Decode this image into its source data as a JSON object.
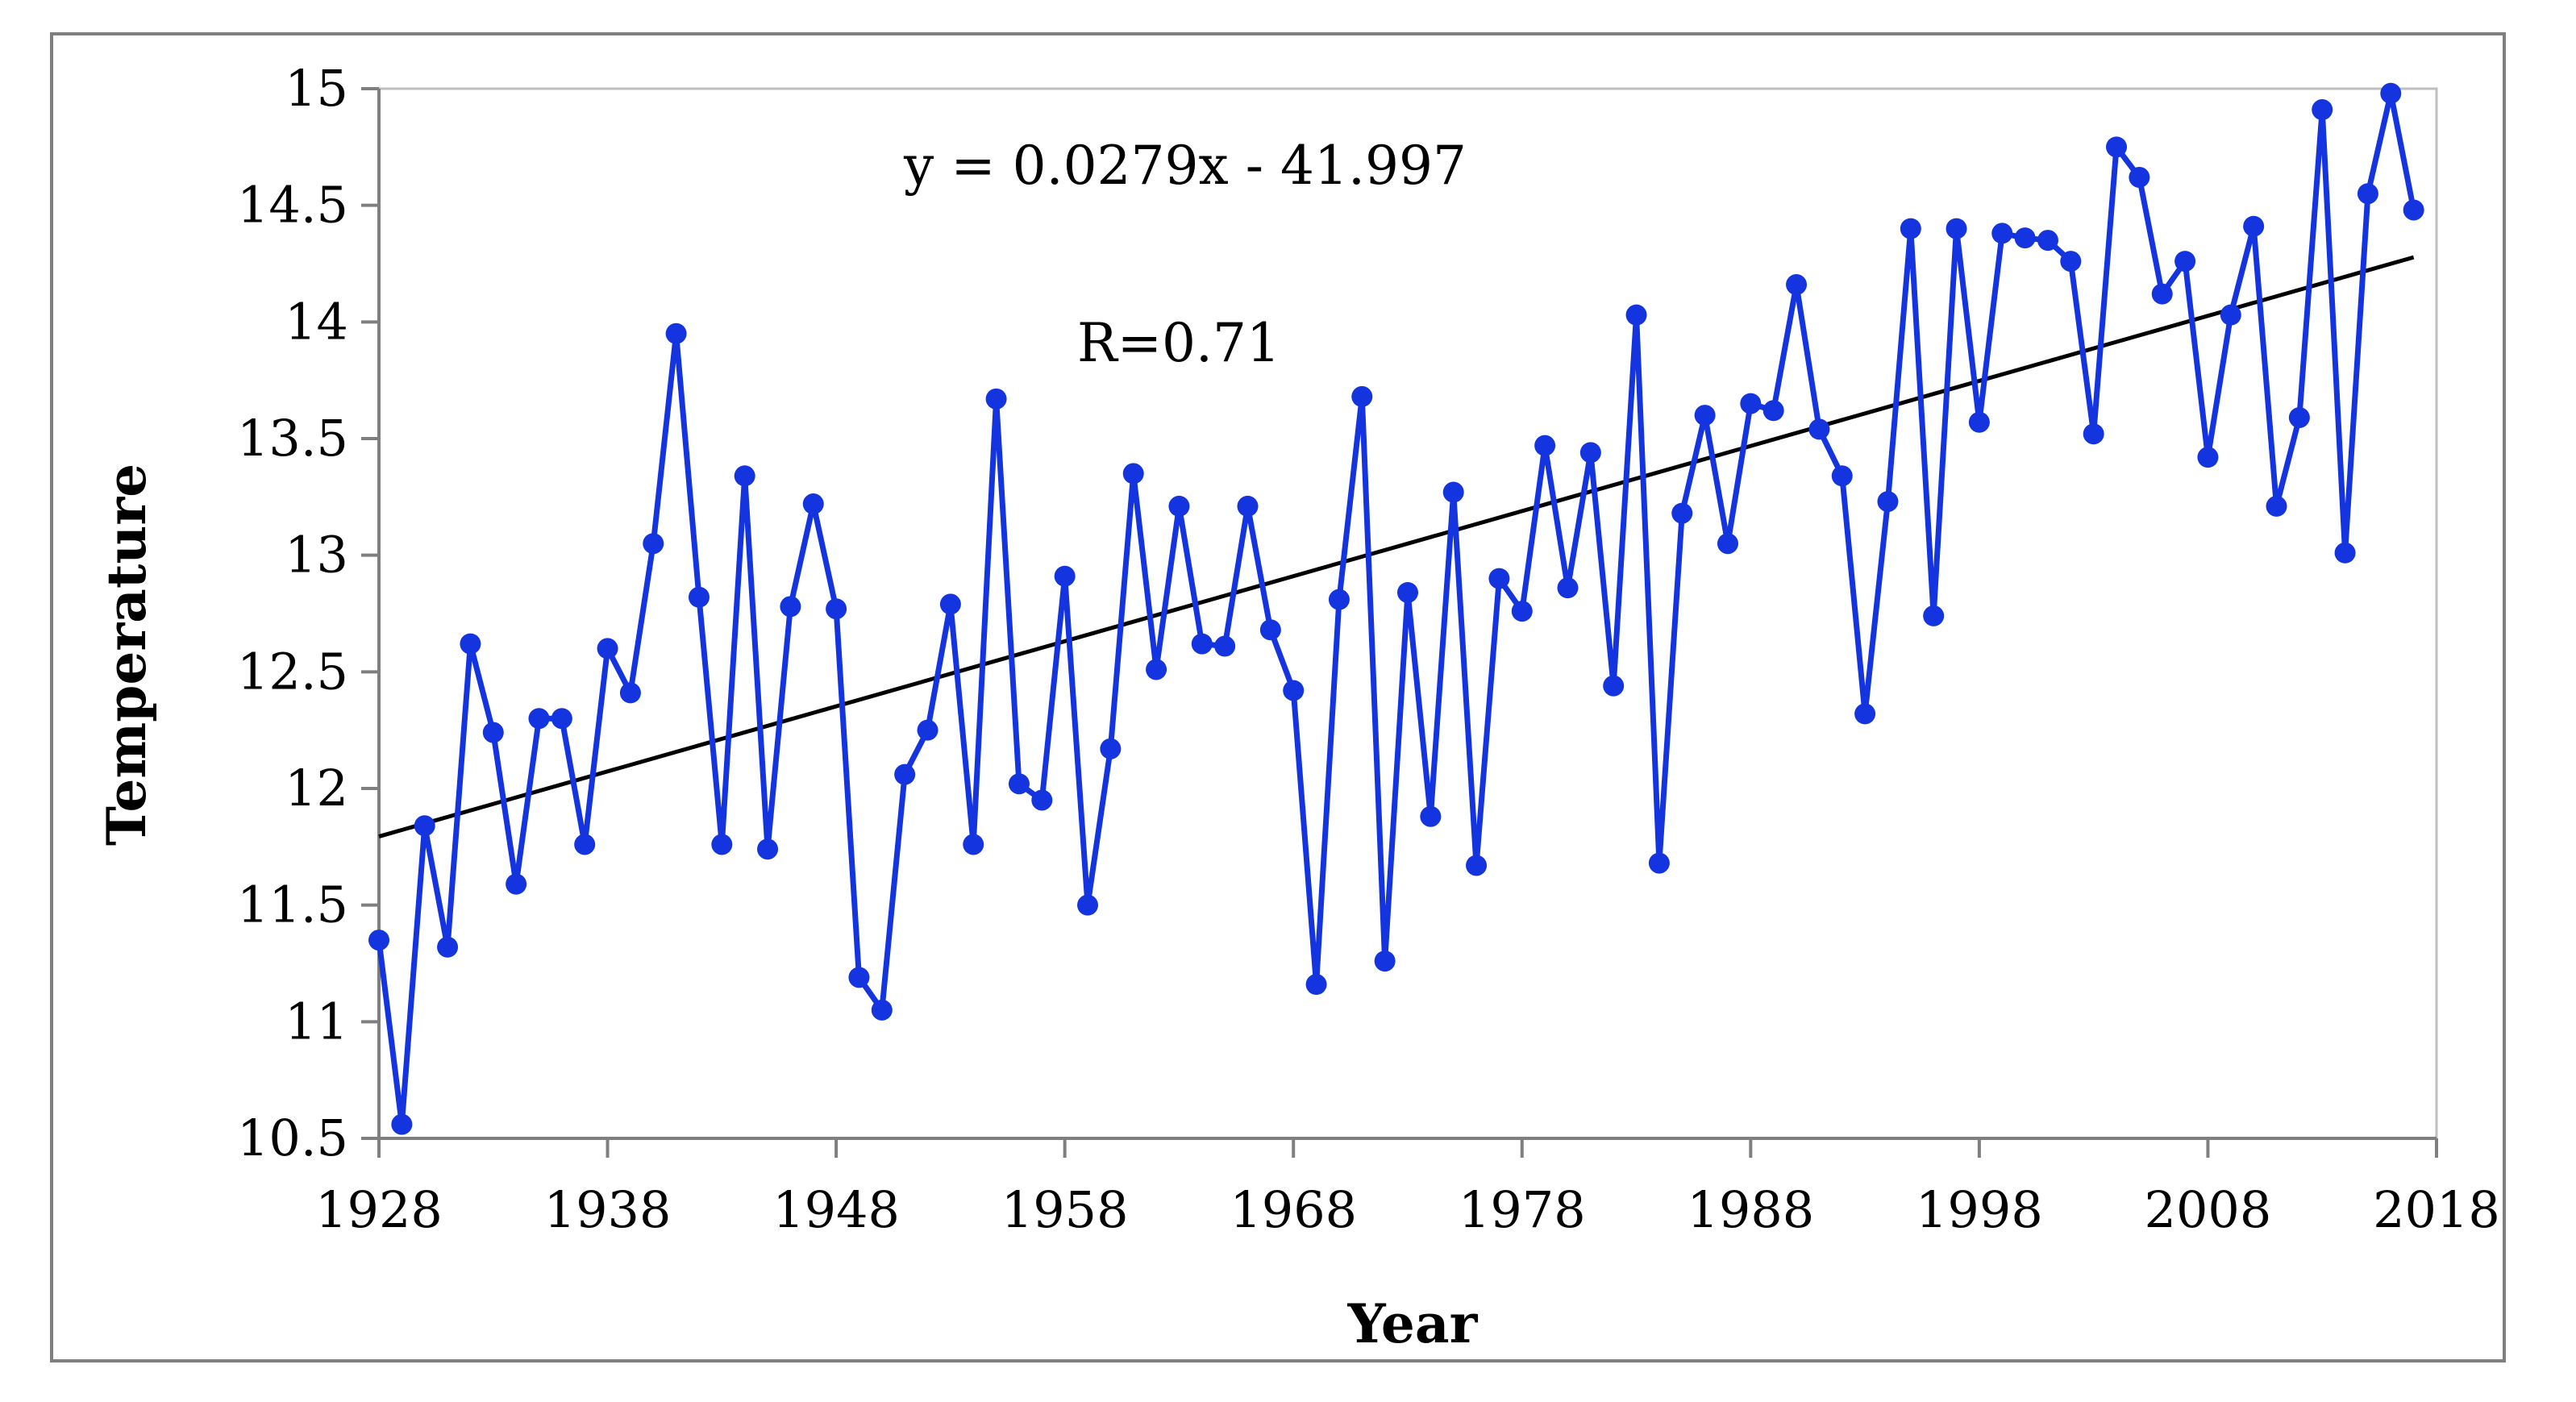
{
  "chart_data": {
    "type": "line",
    "title": "",
    "xlabel": "Year",
    "ylabel": "Temperature",
    "xlim": [
      1928,
      2018
    ],
    "ylim": [
      10.5,
      15
    ],
    "x_ticks": [
      "1928",
      "1938",
      "1948",
      "1958",
      "1968",
      "1978",
      "1988",
      "1998",
      "2008",
      "2018"
    ],
    "y_ticks": [
      "10.5",
      "11",
      "11.5",
      "12",
      "12.5",
      "13",
      "13.5",
      "14",
      "14.5",
      "15"
    ],
    "grid": false,
    "legend": "none",
    "annotations": {
      "equation": "y = 0.0279x - 41.997",
      "r_value": "R=0.71"
    },
    "trendline": {
      "slope": 0.0279,
      "intercept": -41.997,
      "x_range": [
        1928,
        2017
      ],
      "color": "#000000"
    },
    "series": [
      {
        "name": "Temperature",
        "color": "#1434e0",
        "x": [
          1928,
          1929,
          1930,
          1931,
          1932,
          1933,
          1934,
          1935,
          1936,
          1937,
          1938,
          1939,
          1940,
          1941,
          1942,
          1943,
          1944,
          1945,
          1946,
          1947,
          1948,
          1949,
          1950,
          1951,
          1952,
          1953,
          1954,
          1955,
          1956,
          1957,
          1958,
          1959,
          1960,
          1961,
          1962,
          1963,
          1964,
          1965,
          1966,
          1967,
          1968,
          1969,
          1970,
          1971,
          1972,
          1973,
          1974,
          1975,
          1976,
          1977,
          1978,
          1979,
          1980,
          1981,
          1982,
          1983,
          1984,
          1985,
          1986,
          1987,
          1988,
          1989,
          1990,
          1991,
          1992,
          1993,
          1994,
          1995,
          1996,
          1997,
          1998,
          1999,
          2000,
          2001,
          2002,
          2003,
          2004,
          2005,
          2006,
          2007,
          2008,
          2009,
          2010,
          2011,
          2012,
          2013,
          2014,
          2015,
          2016,
          2017
        ],
        "values": [
          11.35,
          10.56,
          11.84,
          11.32,
          12.62,
          12.24,
          11.59,
          12.3,
          12.3,
          11.76,
          12.6,
          12.41,
          13.05,
          13.95,
          12.82,
          11.76,
          13.34,
          11.74,
          12.78,
          13.22,
          12.77,
          11.19,
          11.05,
          12.06,
          12.25,
          12.79,
          11.76,
          13.67,
          12.02,
          11.95,
          12.91,
          11.5,
          12.17,
          13.35,
          12.51,
          13.21,
          12.62,
          12.61,
          13.21,
          12.68,
          12.42,
          11.16,
          12.81,
          13.68,
          11.26,
          12.84,
          11.88,
          13.27,
          11.67,
          12.9,
          12.76,
          13.47,
          12.86,
          13.44,
          12.44,
          14.03,
          11.68,
          13.18,
          13.6,
          13.05,
          13.65,
          13.62,
          14.16,
          13.54,
          13.34,
          12.32,
          13.23,
          14.4,
          12.74,
          14.4,
          13.57,
          14.38,
          14.36,
          14.35,
          14.26,
          13.52,
          14.75,
          14.62,
          14.12,
          14.26,
          13.42,
          14.03,
          14.41,
          13.21,
          13.59,
          14.91,
          13.01,
          14.55,
          14.98,
          14.48
        ]
      }
    ]
  }
}
